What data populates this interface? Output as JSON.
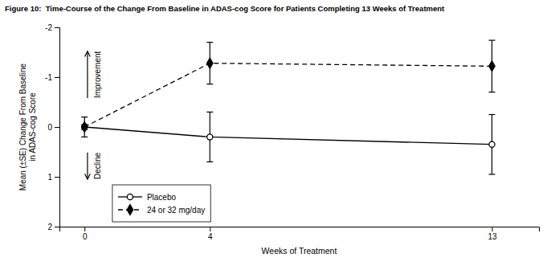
{
  "chart_data": {
    "type": "line",
    "title": "Figure 10:  Time-Course of the Change From Baseline in ADAS-cog Score for Patients Completing 13 Weeks of Treatment",
    "xlabel": "Weeks of Treatment",
    "ylabel": "Mean (±SE) Change From Baseline\nin ADAS-cog Score",
    "x": [
      0,
      4,
      13
    ],
    "series": [
      {
        "name": "Placebo",
        "color": "#000000",
        "marker": "circle",
        "line_style": "solid",
        "values": [
          0.0,
          0.2,
          0.35
        ],
        "errors": [
          0.2,
          0.5,
          0.6
        ]
      },
      {
        "name": "24 or 32 mg/day",
        "color": "#000000",
        "marker": "diamond",
        "line_style": "dashed",
        "values": [
          0.0,
          -1.28,
          -1.22
        ],
        "errors": [
          0.05,
          0.42,
          0.52
        ]
      }
    ],
    "xlim": [
      -0.8,
      14.5
    ],
    "xticks": [
      0,
      4,
      13
    ],
    "ylim": [
      2.0,
      -2.0
    ],
    "yticks": [
      -2,
      -1,
      0,
      1,
      2
    ],
    "legend": "lower left",
    "annotations": [
      {
        "text": "Improvement",
        "x": 0.3,
        "y": -1.05
      },
      {
        "text": "Decline",
        "x": 0.3,
        "y": 0.78
      }
    ]
  }
}
